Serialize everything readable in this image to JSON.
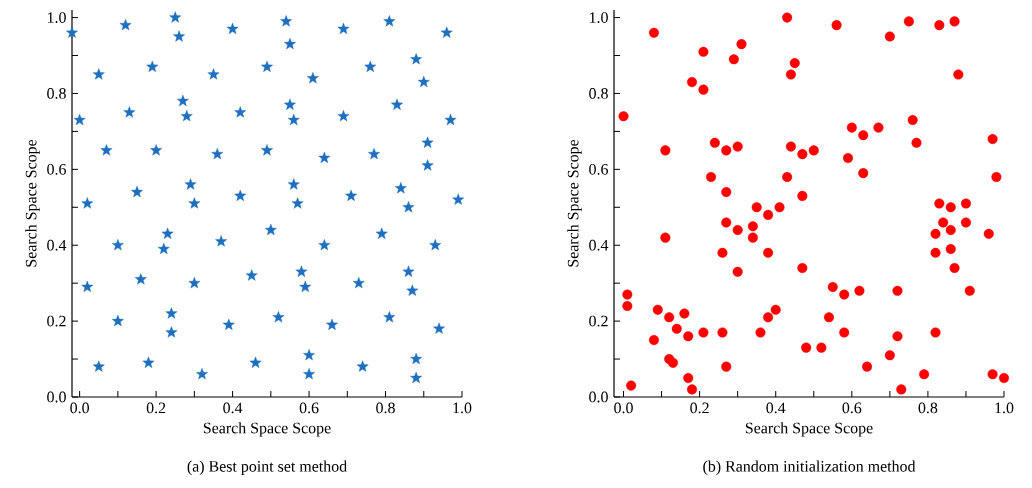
{
  "chart_data": [
    {
      "type": "scatter",
      "xlabel": "Search Space Scope",
      "ylabel": "Search Space Scope",
      "annotations": [
        "(a) Best point set method"
      ],
      "marker": "star",
      "xlim": [
        -0.02,
        1.0
      ],
      "ylim": [
        0,
        1.02
      ],
      "xticks": [
        {
          "value": 0,
          "label": "0.0"
        },
        {
          "value": 0.1,
          "label": null
        },
        0.2,
        {
          "value": 0.3,
          "label": null
        },
        0.4,
        {
          "value": 0.5,
          "label": null
        },
        0.6,
        {
          "value": 0.7,
          "label": null
        },
        0.8,
        {
          "value": 0.9,
          "label": null
        },
        {
          "value": 1,
          "label": "1.0"
        }
      ],
      "yticks": [
        {
          "value": 0,
          "label": "0.0"
        },
        {
          "value": 0.1,
          "label": null
        },
        0.2,
        {
          "value": 0.3,
          "label": null
        },
        0.4,
        {
          "value": 0.5,
          "label": null
        },
        0.6,
        {
          "value": 0.7,
          "label": null
        },
        0.8,
        {
          "value": 0.9,
          "label": null
        },
        {
          "value": 1,
          "label": "1.0"
        }
      ],
      "series": [
        {
          "color": "#1f6fbf",
          "x": [
            -0.02,
            0.12,
            0.25,
            0.26,
            0.4,
            0.54,
            0.55,
            0.69,
            0.81,
            0.96,
            0.05,
            0.19,
            0.35,
            0.49,
            0.61,
            0.76,
            0.88,
            0.9,
            0.0,
            0.13,
            0.27,
            0.28,
            0.42,
            0.55,
            0.56,
            0.69,
            0.83,
            0.97,
            0.07,
            0.2,
            0.36,
            0.49,
            0.64,
            0.77,
            0.91,
            0.91,
            0.02,
            0.15,
            0.29,
            0.3,
            0.42,
            0.56,
            0.57,
            0.71,
            0.84,
            0.86,
            0.99,
            0.23,
            0.1,
            0.22,
            0.37,
            0.5,
            0.64,
            0.79,
            0.93,
            0.02,
            0.16,
            0.3,
            0.45,
            0.58,
            0.59,
            0.73,
            0.86,
            0.87,
            0.1,
            0.24,
            0.24,
            0.39,
            0.52,
            0.66,
            0.81,
            0.94,
            0.05,
            0.18,
            0.32,
            0.46,
            0.6,
            0.6,
            0.74,
            0.88,
            0.88
          ],
          "values": [
            0.96,
            0.98,
            1.0,
            0.95,
            0.97,
            0.99,
            0.93,
            0.97,
            0.99,
            0.96,
            0.85,
            0.87,
            0.85,
            0.87,
            0.84,
            0.87,
            0.89,
            0.83,
            0.73,
            0.75,
            0.78,
            0.74,
            0.75,
            0.77,
            0.73,
            0.74,
            0.77,
            0.73,
            0.65,
            0.65,
            0.64,
            0.65,
            0.63,
            0.64,
            0.67,
            0.61,
            0.51,
            0.54,
            0.56,
            0.51,
            0.53,
            0.56,
            0.51,
            0.53,
            0.55,
            0.5,
            0.52,
            0.43,
            0.4,
            0.39,
            0.41,
            0.44,
            0.4,
            0.43,
            0.4,
            0.29,
            0.31,
            0.3,
            0.32,
            0.33,
            0.29,
            0.3,
            0.33,
            0.28,
            0.2,
            0.22,
            0.17,
            0.19,
            0.21,
            0.19,
            0.21,
            0.18,
            0.08,
            0.09,
            0.06,
            0.09,
            0.11,
            0.06,
            0.08,
            0.1,
            0.05
          ]
        }
      ]
    },
    {
      "type": "scatter",
      "xlabel": "Search Space Scope",
      "ylabel": "Search Space Scope",
      "annotations": [
        "(b) Random initialization method"
      ],
      "marker": "circle",
      "xlim": [
        -0.025,
        1.0
      ],
      "ylim": [
        0,
        1.02
      ],
      "xticks": [
        {
          "value": 0,
          "label": "0.0"
        },
        {
          "value": 0.1,
          "label": null
        },
        0.2,
        {
          "value": 0.3,
          "label": null
        },
        0.4,
        {
          "value": 0.5,
          "label": null
        },
        0.6,
        {
          "value": 0.7,
          "label": null
        },
        0.8,
        {
          "value": 0.9,
          "label": null
        },
        {
          "value": 1,
          "label": "1.0"
        }
      ],
      "yticks": [
        {
          "value": 0,
          "label": "0.0"
        },
        {
          "value": 0.1,
          "label": null
        },
        0.2,
        {
          "value": 0.3,
          "label": null
        },
        0.4,
        {
          "value": 0.5,
          "label": null
        },
        0.6,
        {
          "value": 0.7,
          "label": null
        },
        0.8,
        {
          "value": 0.9,
          "label": null
        },
        {
          "value": 1,
          "label": "1.0"
        }
      ],
      "series": [
        {
          "color": "#ff0000",
          "x": [
            0.0,
            0.08,
            0.11,
            0.18,
            0.21,
            0.21,
            0.29,
            0.31,
            0.24,
            0.27,
            0.3,
            0.23,
            0.27,
            0.43,
            0.45,
            0.44,
            0.56,
            0.7,
            0.75,
            0.83,
            0.87,
            0.88,
            0.44,
            0.47,
            0.5,
            0.43,
            0.47,
            0.6,
            0.63,
            0.67,
            0.59,
            0.63,
            0.76,
            0.77,
            0.97,
            0.98,
            0.01,
            0.01,
            0.02,
            0.08,
            0.09,
            0.11,
            0.12,
            0.12,
            0.13,
            0.14,
            0.16,
            0.17,
            0.17,
            0.18,
            0.21,
            0.26,
            0.26,
            0.27,
            0.27,
            0.3,
            0.3,
            0.34,
            0.34,
            0.35,
            0.38,
            0.38,
            0.41,
            0.36,
            0.38,
            0.4,
            0.47,
            0.48,
            0.52,
            0.54,
            0.55,
            0.58,
            0.58,
            0.62,
            0.64,
            0.7,
            0.72,
            0.72,
            0.73,
            0.79,
            0.82,
            0.82,
            0.82,
            0.84,
            0.83,
            0.86,
            0.86,
            0.86,
            0.87,
            0.9,
            0.9,
            0.91,
            0.96,
            0.97,
            1.0
          ],
          "values": [
            0.74,
            0.96,
            0.65,
            0.83,
            0.81,
            0.91,
            0.89,
            0.93,
            0.67,
            0.65,
            0.66,
            0.58,
            0.54,
            1.0,
            0.88,
            0.85,
            0.98,
            0.95,
            0.99,
            0.98,
            0.99,
            0.85,
            0.66,
            0.64,
            0.65,
            0.58,
            0.53,
            0.71,
            0.69,
            0.71,
            0.63,
            0.59,
            0.73,
            0.67,
            0.68,
            0.58,
            0.27,
            0.24,
            0.03,
            0.15,
            0.23,
            0.42,
            0.21,
            0.1,
            0.09,
            0.18,
            0.22,
            0.16,
            0.05,
            0.02,
            0.17,
            0.17,
            0.38,
            0.08,
            0.46,
            0.44,
            0.33,
            0.45,
            0.42,
            0.5,
            0.48,
            0.38,
            0.5,
            0.17,
            0.21,
            0.23,
            0.34,
            0.13,
            0.13,
            0.21,
            0.29,
            0.27,
            0.17,
            0.28,
            0.08,
            0.11,
            0.16,
            0.28,
            0.02,
            0.06,
            0.17,
            0.38,
            0.43,
            0.46,
            0.51,
            0.5,
            0.44,
            0.39,
            0.34,
            0.51,
            0.46,
            0.28,
            0.43,
            0.06,
            0.05
          ]
        }
      ]
    }
  ]
}
